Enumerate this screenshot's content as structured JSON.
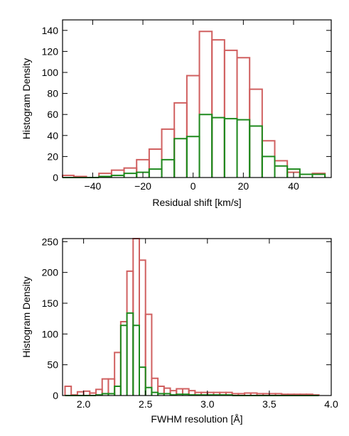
{
  "chart_data": [
    {
      "type": "histogram",
      "xlabel": "Residual shift [km/s]",
      "ylabel": "Histogram Density",
      "xlim": [
        -52,
        55
      ],
      "ylim": [
        0,
        150
      ],
      "xticks": [
        -40,
        -20,
        0,
        20,
        40
      ],
      "yticks": [
        0,
        20,
        40,
        60,
        80,
        100,
        120,
        140
      ],
      "grid": false,
      "bin_edges": [
        -52,
        -47.5,
        -42.5,
        -37.5,
        -32.5,
        -27.5,
        -22.5,
        -17.5,
        -12.5,
        -7.5,
        -2.5,
        2.5,
        7.5,
        12.5,
        17.5,
        22.5,
        27.5,
        32.5,
        37.5,
        42.5,
        47.5,
        52.5
      ],
      "series": [
        {
          "color": "#d06060",
          "values": [
            2,
            1,
            0,
            4,
            7,
            9,
            17,
            27,
            46,
            71,
            97,
            139,
            131,
            121,
            114,
            84,
            35,
            16,
            5,
            3,
            4,
            1
          ]
        },
        {
          "color": "#1e8a1e",
          "values": [
            0,
            0,
            0,
            1,
            2,
            4,
            5,
            8,
            17,
            37,
            39,
            60,
            57,
            56,
            55,
            49,
            20,
            11,
            8,
            3,
            3,
            0
          ]
        }
      ]
    },
    {
      "type": "histogram",
      "xlabel": "FWHM resolution [Å]",
      "ylabel": "Histogram Density",
      "xlim": [
        1.83,
        4.0
      ],
      "ylim": [
        0,
        255
      ],
      "xticks": [
        2.0,
        2.5,
        3.0,
        3.5,
        4.0
      ],
      "xtick_labels": [
        "2.0",
        "2.5",
        "3.0",
        "3.5",
        "4.0"
      ],
      "yticks": [
        0,
        50,
        100,
        150,
        200,
        250
      ],
      "grid": false,
      "bin_edges": [
        1.85,
        1.9,
        1.95,
        2.0,
        2.05,
        2.1,
        2.15,
        2.2,
        2.25,
        2.3,
        2.35,
        2.4,
        2.45,
        2.5,
        2.55,
        2.6,
        2.65,
        2.7,
        2.75,
        2.8,
        2.85,
        2.9,
        2.95,
        3.0,
        3.05,
        3.1,
        3.15,
        3.2,
        3.25,
        3.3,
        3.35,
        3.4,
        3.45,
        3.5,
        3.55,
        3.6,
        3.65,
        3.7,
        3.75,
        3.8,
        3.85,
        3.9
      ],
      "series": [
        {
          "color": "#d06060",
          "values": [
            15,
            1,
            6,
            7,
            4,
            10,
            27,
            27,
            70,
            120,
            202,
            255,
            220,
            132,
            28,
            15,
            12,
            8,
            11,
            11,
            8,
            5,
            5,
            5,
            5,
            5,
            5,
            3,
            3,
            4,
            4,
            3,
            3,
            3,
            3,
            2,
            2,
            2,
            2,
            2,
            1
          ]
        },
        {
          "color": "#1e8a1e",
          "values": [
            0,
            0,
            0,
            0,
            0,
            1,
            3,
            3,
            15,
            114,
            134,
            114,
            46,
            13,
            5,
            3,
            3,
            1,
            2,
            2,
            1,
            1,
            1,
            1,
            1,
            1,
            1,
            0,
            0,
            0,
            0,
            0,
            0,
            0,
            0,
            0,
            0,
            0,
            0,
            0,
            0
          ]
        }
      ]
    }
  ]
}
